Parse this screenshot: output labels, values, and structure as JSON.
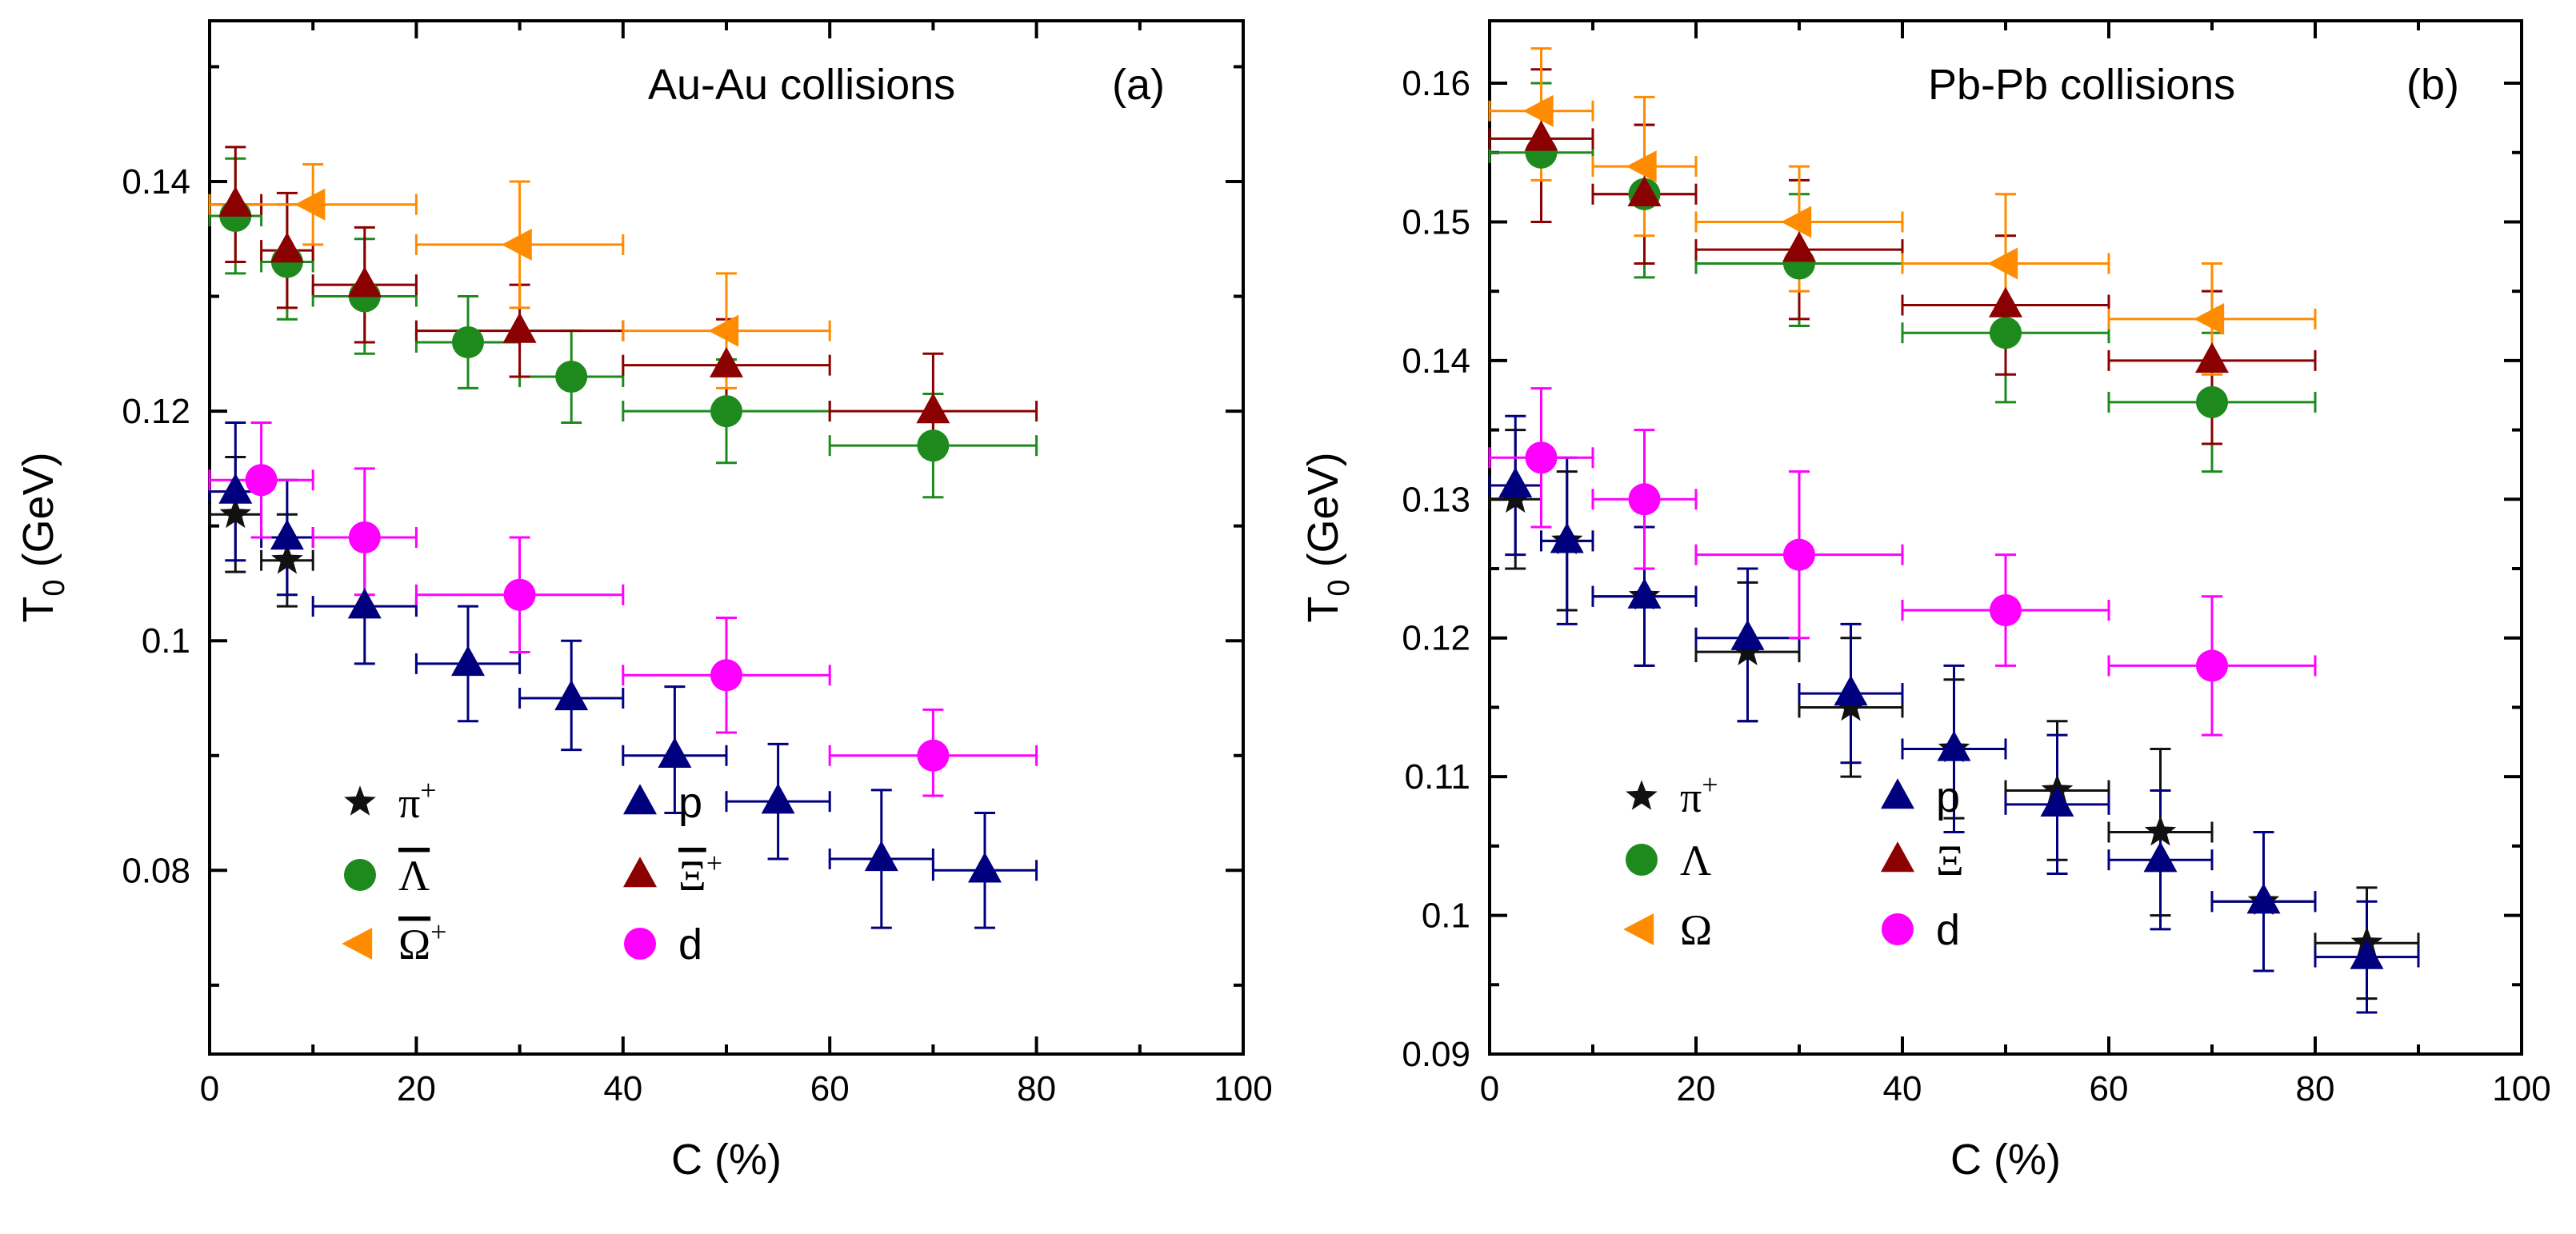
{
  "colors": {
    "pi_plus": "#111111",
    "p": "#00007f",
    "Lambda": "#1e8a1e",
    "Xi": "#8b0000",
    "Omega": "#ff8c00",
    "d": "#ff00ff"
  },
  "chart_data": [
    {
      "type": "scatter",
      "title": "Au-Au collisions",
      "panel_label": "(a)",
      "xlabel": "C (%)",
      "ylabel_main": "T",
      "ylabel_sub": "0",
      "ylabel_rest": " (GeV)",
      "xlim": [
        0,
        100
      ],
      "ylim": [
        0.064,
        0.154
      ],
      "xticks": [
        0,
        20,
        40,
        60,
        80,
        100
      ],
      "xtick_labels": [
        "0",
        "20",
        "40",
        "60",
        "80",
        "100"
      ],
      "yticks": [
        0.08,
        0.1,
        0.12,
        0.14
      ],
      "ytick_labels": [
        "0.08",
        "0.1",
        "0.12",
        "0.14"
      ],
      "legend": [
        {
          "series": "pi_plus",
          "marker": "star",
          "text": "π",
          "sup": "+",
          "overline": false
        },
        {
          "series": "p",
          "marker": "triangle-up",
          "text": "p",
          "sup": "",
          "overline": false
        },
        {
          "series": "Lambda",
          "marker": "circle",
          "text": "Λ",
          "sup": "",
          "overline": true
        },
        {
          "series": "Xi",
          "marker": "triangle-up",
          "text": "Ξ",
          "sup": "+",
          "overline": true
        },
        {
          "series": "Omega",
          "marker": "triangle-left",
          "text": "Ω",
          "sup": "+",
          "overline": true
        },
        {
          "series": "d",
          "marker": "circle",
          "text": "d",
          "sup": "",
          "overline": false
        }
      ],
      "series": [
        {
          "key": "pi_plus",
          "name": "π+",
          "marker": "star",
          "points": [
            {
              "x": 2.5,
              "y": 0.111,
              "xl": 0,
              "xh": 5,
              "yl": 0.106,
              "yh": 0.116
            },
            {
              "x": 7.5,
              "y": 0.107,
              "xl": 5,
              "xh": 10,
              "yl": 0.103,
              "yh": 0.111
            }
          ]
        },
        {
          "key": "p",
          "name": "p",
          "marker": "triangle-up",
          "points": [
            {
              "x": 2.5,
              "y": 0.113,
              "xl": 0,
              "xh": 5,
              "yl": 0.107,
              "yh": 0.119
            },
            {
              "x": 7.5,
              "y": 0.109,
              "xl": 5,
              "xh": 10,
              "yl": 0.104,
              "yh": 0.114
            },
            {
              "x": 15,
              "y": 0.103,
              "xl": 10,
              "xh": 20,
              "yl": 0.098,
              "yh": 0.108
            },
            {
              "x": 25,
              "y": 0.098,
              "xl": 20,
              "xh": 30,
              "yl": 0.093,
              "yh": 0.103
            },
            {
              "x": 35,
              "y": 0.095,
              "xl": 30,
              "xh": 40,
              "yl": 0.0905,
              "yh": 0.1
            },
            {
              "x": 45,
              "y": 0.09,
              "xl": 40,
              "xh": 50,
              "yl": 0.085,
              "yh": 0.096
            },
            {
              "x": 55,
              "y": 0.086,
              "xl": 50,
              "xh": 60,
              "yl": 0.081,
              "yh": 0.091
            },
            {
              "x": 65,
              "y": 0.081,
              "xl": 60,
              "xh": 70,
              "yl": 0.075,
              "yh": 0.087
            },
            {
              "x": 75,
              "y": 0.08,
              "xl": 70,
              "xh": 80,
              "yl": 0.075,
              "yh": 0.085
            }
          ]
        },
        {
          "key": "Lambda",
          "name": "Λ + anti-Λ",
          "marker": "circle",
          "points": [
            {
              "x": 2.5,
              "y": 0.137,
              "xl": 0,
              "xh": 5,
              "yl": 0.132,
              "yh": 0.142
            },
            {
              "x": 7.5,
              "y": 0.133,
              "xl": 5,
              "xh": 10,
              "yl": 0.128,
              "yh": 0.138
            },
            {
              "x": 15,
              "y": 0.13,
              "xl": 10,
              "xh": 20,
              "yl": 0.125,
              "yh": 0.135
            },
            {
              "x": 25,
              "y": 0.126,
              "xl": 20,
              "xh": 30,
              "yl": 0.122,
              "yh": 0.13
            },
            {
              "x": 35,
              "y": 0.123,
              "xl": 30,
              "xh": 40,
              "yl": 0.119,
              "yh": 0.127
            },
            {
              "x": 50,
              "y": 0.12,
              "xl": 40,
              "xh": 60,
              "yl": 0.1155,
              "yh": 0.1245
            },
            {
              "x": 70,
              "y": 0.117,
              "xl": 60,
              "xh": 80,
              "yl": 0.1125,
              "yh": 0.1215
            }
          ]
        },
        {
          "key": "Xi",
          "name": "Ξ + anti-Ξ",
          "marker": "triangle-up",
          "points": [
            {
              "x": 2.5,
              "y": 0.138,
              "xl": 0,
              "xh": 5,
              "yl": 0.133,
              "yh": 0.143
            },
            {
              "x": 7.5,
              "y": 0.134,
              "xl": 5,
              "xh": 10,
              "yl": 0.129,
              "yh": 0.139
            },
            {
              "x": 15,
              "y": 0.131,
              "xl": 10,
              "xh": 20,
              "yl": 0.126,
              "yh": 0.136
            },
            {
              "x": 30,
              "y": 0.127,
              "xl": 20,
              "xh": 40,
              "yl": 0.123,
              "yh": 0.131
            },
            {
              "x": 50,
              "y": 0.124,
              "xl": 40,
              "xh": 60,
              "yl": 0.12,
              "yh": 0.128
            },
            {
              "x": 70,
              "y": 0.12,
              "xl": 60,
              "xh": 80,
              "yl": 0.116,
              "yh": 0.125
            }
          ]
        },
        {
          "key": "Omega",
          "name": "Ω + anti-Ω",
          "marker": "triangle-left",
          "points": [
            {
              "x": 10,
              "y": 0.138,
              "xl": 0,
              "xh": 20,
              "yl": 0.1345,
              "yh": 0.1415
            },
            {
              "x": 30,
              "y": 0.1345,
              "xl": 20,
              "xh": 40,
              "yl": 0.129,
              "yh": 0.14
            },
            {
              "x": 50,
              "y": 0.127,
              "xl": 40,
              "xh": 60,
              "yl": 0.122,
              "yh": 0.132
            }
          ]
        },
        {
          "key": "d",
          "name": "d",
          "marker": "circle",
          "points": [
            {
              "x": 5,
              "y": 0.114,
              "xl": 0,
              "xh": 10,
              "yl": 0.109,
              "yh": 0.119
            },
            {
              "x": 15,
              "y": 0.109,
              "xl": 10,
              "xh": 20,
              "yl": 0.104,
              "yh": 0.115
            },
            {
              "x": 30,
              "y": 0.104,
              "xl": 20,
              "xh": 40,
              "yl": 0.099,
              "yh": 0.109
            },
            {
              "x": 50,
              "y": 0.097,
              "xl": 40,
              "xh": 60,
              "yl": 0.092,
              "yh": 0.102
            },
            {
              "x": 70,
              "y": 0.09,
              "xl": 60,
              "xh": 80,
              "yl": 0.0865,
              "yh": 0.094
            }
          ]
        }
      ]
    },
    {
      "type": "scatter",
      "title": "Pb-Pb collisions",
      "panel_label": "(b)",
      "xlabel": "C (%)",
      "ylabel_main": "T",
      "ylabel_sub": "0",
      "ylabel_rest": " (GeV)",
      "xlim": [
        0,
        100
      ],
      "ylim": [
        0.09,
        0.1645
      ],
      "xticks": [
        0,
        20,
        40,
        60,
        80,
        100
      ],
      "xtick_labels": [
        "0",
        "20",
        "40",
        "60",
        "80",
        "100"
      ],
      "yticks": [
        0.09,
        0.1,
        0.11,
        0.12,
        0.13,
        0.14,
        0.15,
        0.16
      ],
      "ytick_labels": [
        "0.09",
        "0.1",
        "0.11",
        "0.12",
        "0.13",
        "0.14",
        "0.15",
        "0.16"
      ],
      "legend": [
        {
          "series": "pi_plus",
          "marker": "star",
          "text": "π",
          "sup": "+",
          "overline": false
        },
        {
          "series": "p",
          "marker": "triangle-up",
          "text": "p",
          "sup": "",
          "overline": false
        },
        {
          "series": "Lambda",
          "marker": "circle",
          "text": "Λ",
          "sup": "",
          "overline": false
        },
        {
          "series": "Xi",
          "marker": "triangle-up",
          "text": "Ξ",
          "sup": "",
          "overline": false
        },
        {
          "series": "Omega",
          "marker": "triangle-left",
          "text": "Ω",
          "sup": "",
          "overline": false
        },
        {
          "series": "d",
          "marker": "circle",
          "text": "d",
          "sup": "",
          "overline": false
        }
      ],
      "series": [
        {
          "key": "pi_plus",
          "name": "π+",
          "marker": "star",
          "points": [
            {
              "x": 2.5,
              "y": 0.13,
              "xl": 0,
              "xh": 5,
              "yl": 0.125,
              "yh": 0.135
            },
            {
              "x": 7.5,
              "y": 0.127,
              "xl": 5,
              "xh": 10,
              "yl": 0.122,
              "yh": 0.132
            },
            {
              "x": 15,
              "y": 0.123,
              "xl": 10,
              "xh": 20,
              "yl": 0.118,
              "yh": 0.128
            },
            {
              "x": 25,
              "y": 0.119,
              "xl": 20,
              "xh": 30,
              "yl": 0.114,
              "yh": 0.124
            },
            {
              "x": 35,
              "y": 0.115,
              "xl": 30,
              "xh": 40,
              "yl": 0.11,
              "yh": 0.12
            },
            {
              "x": 45,
              "y": 0.112,
              "xl": 40,
              "xh": 50,
              "yl": 0.107,
              "yh": 0.117
            },
            {
              "x": 55,
              "y": 0.109,
              "xl": 50,
              "xh": 60,
              "yl": 0.104,
              "yh": 0.114
            },
            {
              "x": 65,
              "y": 0.106,
              "xl": 60,
              "xh": 70,
              "yl": 0.1,
              "yh": 0.112
            },
            {
              "x": 75,
              "y": 0.101,
              "xl": 70,
              "xh": 80,
              "yl": 0.096,
              "yh": 0.106
            },
            {
              "x": 85,
              "y": 0.098,
              "xl": 80,
              "xh": 90,
              "yl": 0.094,
              "yh": 0.102
            }
          ]
        },
        {
          "key": "p",
          "name": "p",
          "marker": "triangle-up",
          "points": [
            {
              "x": 2.5,
              "y": 0.131,
              "xl": 0,
              "xh": 5,
              "yl": 0.126,
              "yh": 0.136
            },
            {
              "x": 7.5,
              "y": 0.127,
              "xl": 5,
              "xh": 10,
              "yl": 0.121,
              "yh": 0.133
            },
            {
              "x": 15,
              "y": 0.123,
              "xl": 10,
              "xh": 20,
              "yl": 0.118,
              "yh": 0.128
            },
            {
              "x": 25,
              "y": 0.12,
              "xl": 20,
              "xh": 30,
              "yl": 0.114,
              "yh": 0.125
            },
            {
              "x": 35,
              "y": 0.116,
              "xl": 30,
              "xh": 40,
              "yl": 0.111,
              "yh": 0.121
            },
            {
              "x": 45,
              "y": 0.112,
              "xl": 40,
              "xh": 50,
              "yl": 0.106,
              "yh": 0.118
            },
            {
              "x": 55,
              "y": 0.108,
              "xl": 50,
              "xh": 60,
              "yl": 0.103,
              "yh": 0.113
            },
            {
              "x": 65,
              "y": 0.104,
              "xl": 60,
              "xh": 70,
              "yl": 0.099,
              "yh": 0.109
            },
            {
              "x": 75,
              "y": 0.101,
              "xl": 70,
              "xh": 80,
              "yl": 0.096,
              "yh": 0.106
            },
            {
              "x": 85,
              "y": 0.097,
              "xl": 80,
              "xh": 90,
              "yl": 0.093,
              "yh": 0.101
            }
          ]
        },
        {
          "key": "Lambda",
          "name": "Λ",
          "marker": "circle",
          "points": [
            {
              "x": 5,
              "y": 0.155,
              "xl": 0,
              "xh": 10,
              "yl": 0.15,
              "yh": 0.16
            },
            {
              "x": 15,
              "y": 0.152,
              "xl": 10,
              "xh": 20,
              "yl": 0.146,
              "yh": 0.157
            },
            {
              "x": 30,
              "y": 0.147,
              "xl": 20,
              "xh": 40,
              "yl": 0.1425,
              "yh": 0.152
            },
            {
              "x": 50,
              "y": 0.142,
              "xl": 40,
              "xh": 60,
              "yl": 0.137,
              "yh": 0.147
            },
            {
              "x": 70,
              "y": 0.137,
              "xl": 60,
              "xh": 80,
              "yl": 0.132,
              "yh": 0.142
            }
          ]
        },
        {
          "key": "Xi",
          "name": "Ξ",
          "marker": "triangle-up",
          "points": [
            {
              "x": 5,
              "y": 0.156,
              "xl": 0,
              "xh": 10,
              "yl": 0.15,
              "yh": 0.161
            },
            {
              "x": 15,
              "y": 0.152,
              "xl": 10,
              "xh": 20,
              "yl": 0.147,
              "yh": 0.157
            },
            {
              "x": 30,
              "y": 0.148,
              "xl": 20,
              "xh": 40,
              "yl": 0.143,
              "yh": 0.153
            },
            {
              "x": 50,
              "y": 0.144,
              "xl": 40,
              "xh": 60,
              "yl": 0.139,
              "yh": 0.149
            },
            {
              "x": 70,
              "y": 0.14,
              "xl": 60,
              "xh": 80,
              "yl": 0.134,
              "yh": 0.145
            }
          ]
        },
        {
          "key": "Omega",
          "name": "Ω",
          "marker": "triangle-left",
          "points": [
            {
              "x": 5,
              "y": 0.158,
              "xl": 0,
              "xh": 10,
              "yl": 0.153,
              "yh": 0.1625
            },
            {
              "x": 15,
              "y": 0.154,
              "xl": 10,
              "xh": 20,
              "yl": 0.149,
              "yh": 0.159
            },
            {
              "x": 30,
              "y": 0.15,
              "xl": 20,
              "xh": 40,
              "yl": 0.145,
              "yh": 0.154
            },
            {
              "x": 50,
              "y": 0.147,
              "xl": 40,
              "xh": 60,
              "yl": 0.142,
              "yh": 0.152
            },
            {
              "x": 70,
              "y": 0.143,
              "xl": 60,
              "xh": 80,
              "yl": 0.139,
              "yh": 0.147
            }
          ]
        },
        {
          "key": "d",
          "name": "d",
          "marker": "circle",
          "points": [
            {
              "x": 5,
              "y": 0.133,
              "xl": 0,
              "xh": 10,
              "yl": 0.128,
              "yh": 0.138
            },
            {
              "x": 15,
              "y": 0.13,
              "xl": 10,
              "xh": 20,
              "yl": 0.125,
              "yh": 0.135
            },
            {
              "x": 30,
              "y": 0.126,
              "xl": 20,
              "xh": 40,
              "yl": 0.12,
              "yh": 0.132
            },
            {
              "x": 50,
              "y": 0.122,
              "xl": 40,
              "xh": 60,
              "yl": 0.118,
              "yh": 0.126
            },
            {
              "x": 70,
              "y": 0.118,
              "xl": 60,
              "xh": 80,
              "yl": 0.113,
              "yh": 0.123
            }
          ]
        }
      ]
    }
  ]
}
